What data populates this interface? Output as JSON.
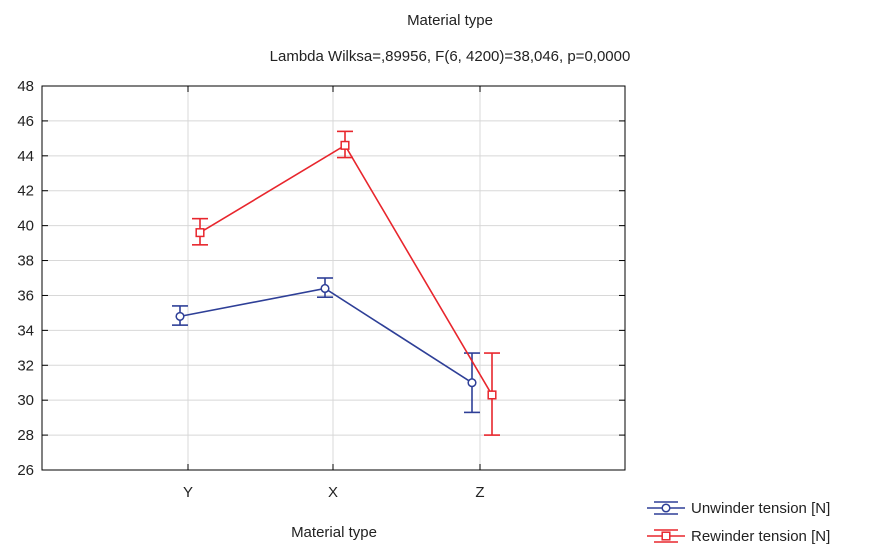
{
  "chart_data": {
    "type": "line",
    "title": "Material type",
    "subtitle": "Lambda Wilksa=,89956, F(6, 4200)=38,046, p=0,0000",
    "xlabel": "Material type",
    "ylabel": "",
    "categories": [
      "Y",
      "X",
      "Z"
    ],
    "ylim": [
      26,
      48
    ],
    "yticks": [
      26,
      28,
      30,
      32,
      34,
      36,
      38,
      40,
      42,
      44,
      46,
      48
    ],
    "grid": true,
    "legend_position": "bottom-right",
    "error_bars": true,
    "series": [
      {
        "name": "Unwinder tension [N]",
        "marker": "circle",
        "color": "#2e3f97",
        "values": [
          34.8,
          36.4,
          31.0
        ],
        "lower": [
          34.3,
          35.9,
          29.3
        ],
        "upper": [
          35.4,
          37.0,
          32.7
        ]
      },
      {
        "name": "Rewinder tension [N]",
        "marker": "square",
        "color": "#e8262d",
        "values": [
          39.6,
          44.6,
          30.3
        ],
        "lower": [
          38.9,
          43.9,
          28.0
        ],
        "upper": [
          40.4,
          45.4,
          32.7
        ]
      }
    ]
  }
}
